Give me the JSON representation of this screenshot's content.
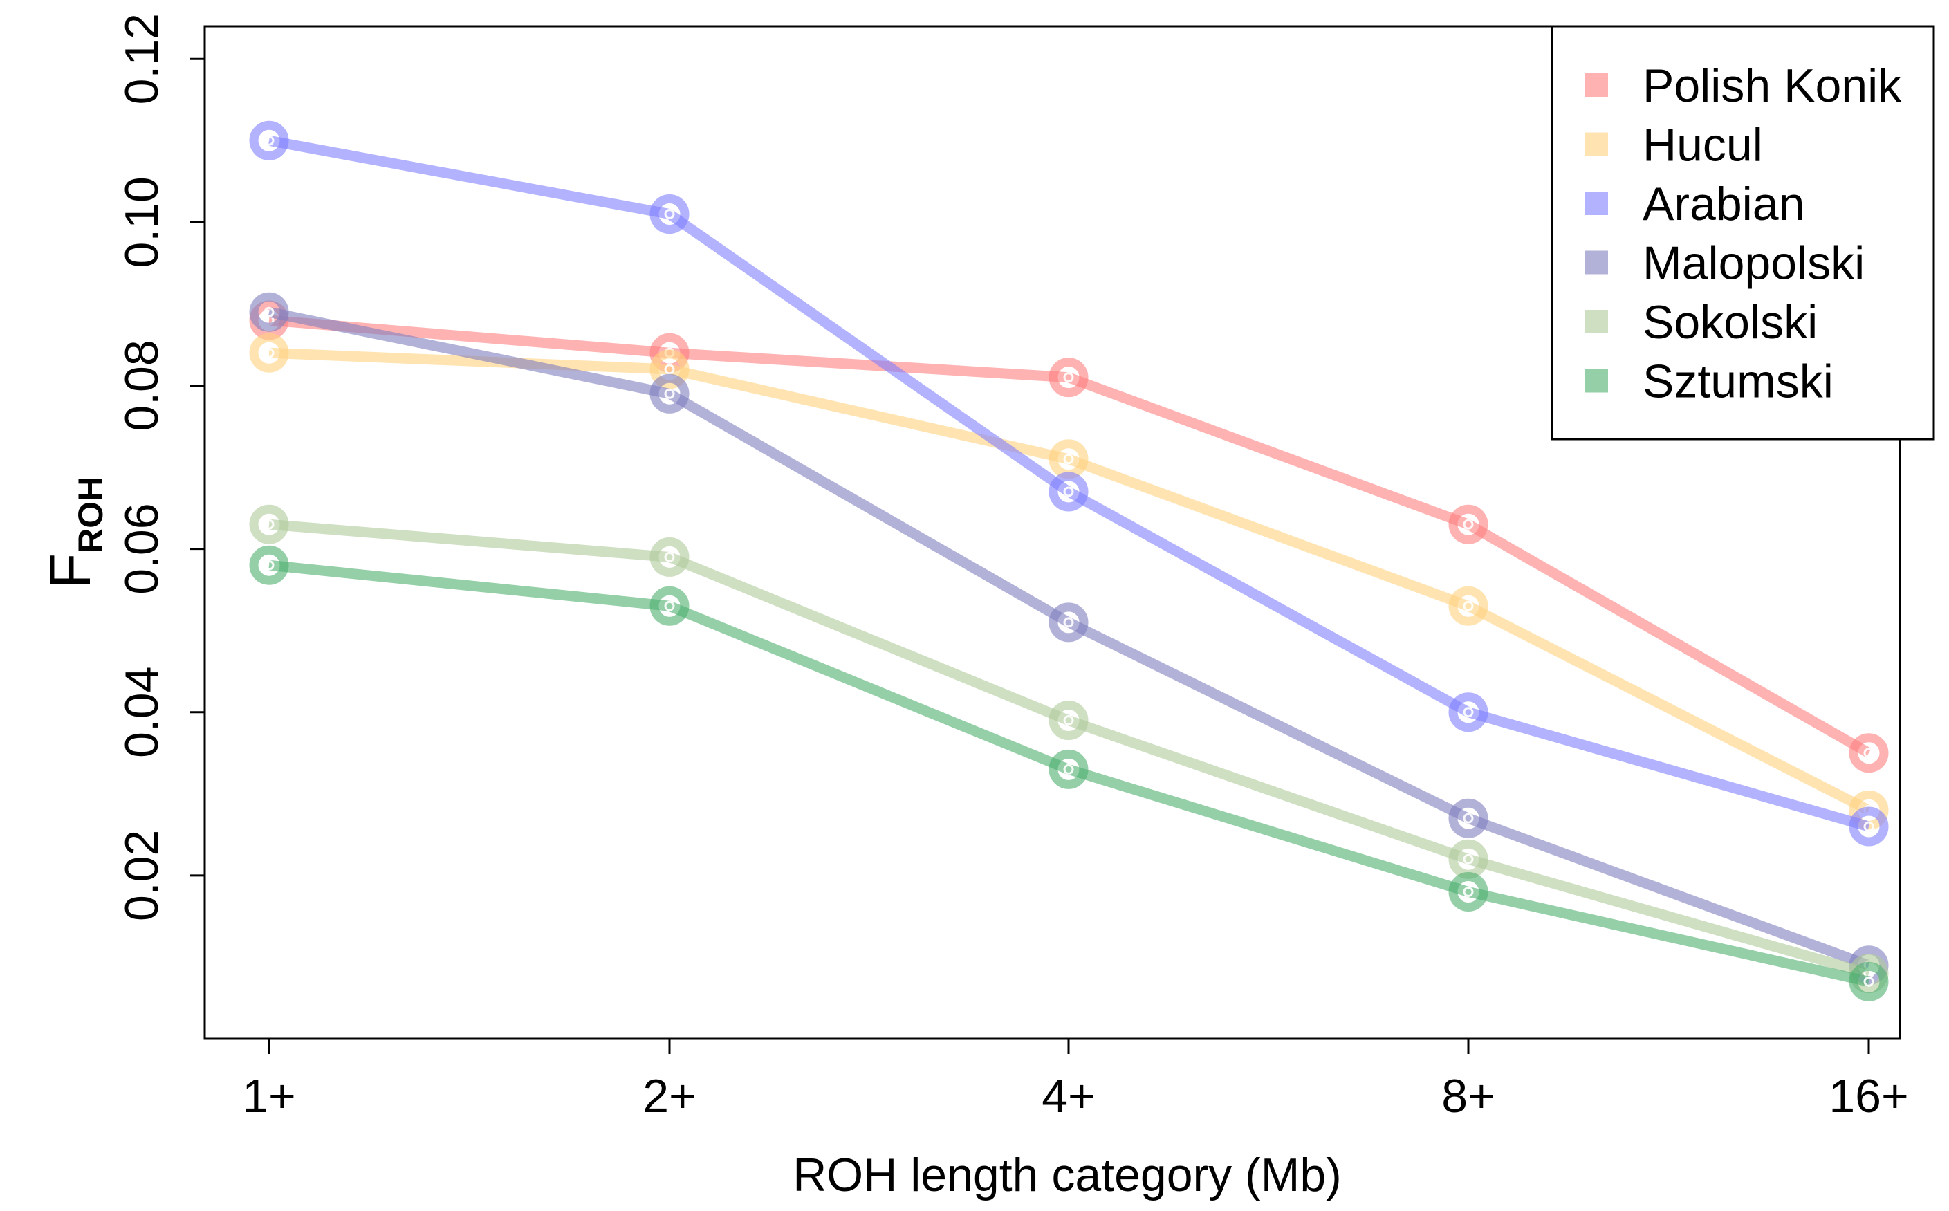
{
  "chart_data": {
    "type": "line",
    "title": "",
    "xlabel": "ROH length category (Mb)",
    "ylabel_main": "F",
    "ylabel_sub": "ROH",
    "categories": [
      "1+",
      "2+",
      "4+",
      "8+",
      "16+"
    ],
    "yticks": [
      "0.02",
      "0.04",
      "0.06",
      "0.08",
      "0.10",
      "0.12"
    ],
    "ylim": [
      0.0,
      0.124
    ],
    "legend_position": "top-right",
    "series": [
      {
        "name": "Polish Konik",
        "color": "#FF7F7F",
        "values": [
          0.088,
          0.084,
          0.081,
          0.063,
          0.035
        ]
      },
      {
        "name": "Hucul",
        "color": "#FFD27F",
        "values": [
          0.084,
          0.082,
          0.071,
          0.053,
          0.028
        ]
      },
      {
        "name": "Arabian",
        "color": "#7F7FFF",
        "values": [
          0.11,
          0.101,
          0.067,
          0.04,
          0.026
        ]
      },
      {
        "name": "Malopolski",
        "color": "#7F7FBF",
        "values": [
          0.089,
          0.079,
          0.051,
          0.027,
          0.009
        ]
      },
      {
        "name": "Sokolski",
        "color": "#AFC99A",
        "values": [
          0.063,
          0.059,
          0.039,
          0.022,
          0.008
        ]
      },
      {
        "name": "Sztumski",
        "color": "#4CAF6E",
        "values": [
          0.058,
          0.053,
          0.033,
          0.018,
          0.007
        ]
      }
    ]
  }
}
